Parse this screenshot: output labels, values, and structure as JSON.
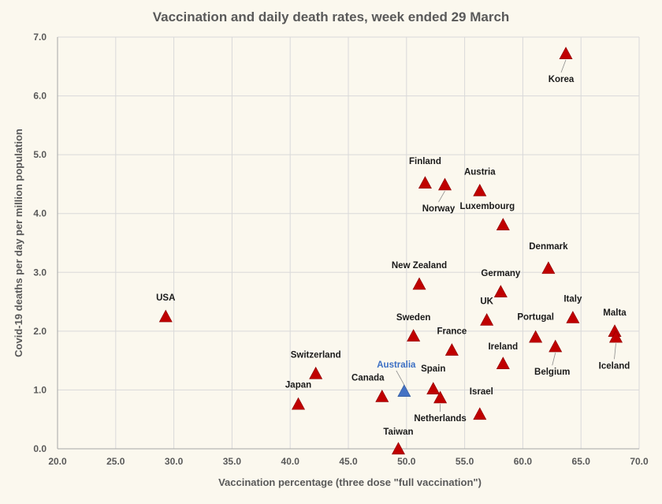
{
  "chart_data": {
    "type": "scatter",
    "title": "Vaccination and daily death rates, week ended 29 March",
    "xlabel": "Vaccination percentage (three dose \"full vaccination\")",
    "ylabel": "Covid-19 deaths per day per million population",
    "xlim": [
      20,
      70
    ],
    "ylim": [
      0,
      7
    ],
    "x_ticks": [
      "20.0",
      "25.0",
      "30.0",
      "35.0",
      "40.0",
      "45.0",
      "50.0",
      "55.0",
      "60.0",
      "65.0",
      "70.0"
    ],
    "y_ticks": [
      "0.0",
      "1.0",
      "2.0",
      "3.0",
      "4.0",
      "5.0",
      "6.0",
      "7.0"
    ],
    "grid": true,
    "colors": {
      "default": "#c00000",
      "highlight": "#4472c4"
    },
    "points": [
      {
        "label": "Korea",
        "x": 63.7,
        "y": 6.72
      },
      {
        "label": "Finland",
        "x": 51.6,
        "y": 4.52
      },
      {
        "label": "Norway",
        "x": 53.3,
        "y": 4.49
      },
      {
        "label": "Austria",
        "x": 56.3,
        "y": 4.39
      },
      {
        "label": "Luxembourg",
        "x": 58.3,
        "y": 3.81
      },
      {
        "label": "Denmark",
        "x": 62.2,
        "y": 3.07
      },
      {
        "label": "New Zealand",
        "x": 51.1,
        "y": 2.8
      },
      {
        "label": "Germany",
        "x": 58.1,
        "y": 2.67
      },
      {
        "label": "USA",
        "x": 29.3,
        "y": 2.25
      },
      {
        "label": "Italy",
        "x": 64.3,
        "y": 2.23
      },
      {
        "label": "UK",
        "x": 56.9,
        "y": 2.19
      },
      {
        "label": "Malta",
        "x": 67.9,
        "y": 2.0
      },
      {
        "label": "Iceland",
        "x": 68.0,
        "y": 1.9
      },
      {
        "label": "Sweden",
        "x": 50.6,
        "y": 1.92
      },
      {
        "label": "Portugal",
        "x": 61.1,
        "y": 1.9
      },
      {
        "label": "Belgium",
        "x": 62.8,
        "y": 1.74
      },
      {
        "label": "France",
        "x": 53.9,
        "y": 1.68
      },
      {
        "label": "Ireland",
        "x": 58.3,
        "y": 1.45
      },
      {
        "label": "Switzerland",
        "x": 42.2,
        "y": 1.28
      },
      {
        "label": "Australia",
        "x": 49.8,
        "y": 0.98,
        "highlight": true
      },
      {
        "label": "Spain",
        "x": 52.3,
        "y": 1.02
      },
      {
        "label": "Canada",
        "x": 47.9,
        "y": 0.89
      },
      {
        "label": "Netherlands",
        "x": 52.9,
        "y": 0.87
      },
      {
        "label": "Japan",
        "x": 40.7,
        "y": 0.76
      },
      {
        "label": "Israel",
        "x": 56.3,
        "y": 0.59
      },
      {
        "label": "Taiwan",
        "x": 49.3,
        "y": 0.0
      }
    ]
  }
}
